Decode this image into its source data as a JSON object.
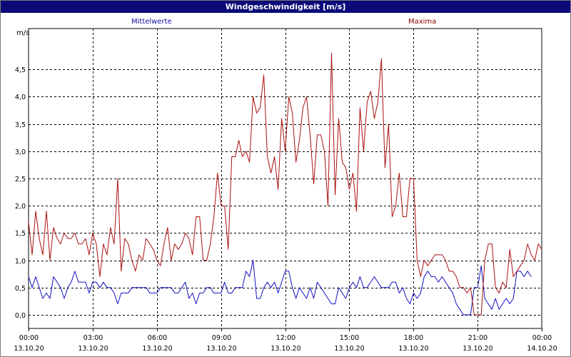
{
  "window": {
    "title": "Windgeschwindigkeit [m/s]"
  },
  "chart_data": {
    "type": "line",
    "title": "Windgeschwindigkeit [m/s]",
    "ylabel": "m/s",
    "ylim": [
      -0.25,
      5.25
    ],
    "xlim": [
      0,
      24
    ],
    "grid": true,
    "legend_placement": "top",
    "y_ticks": [
      "0,0",
      "0,5",
      "1,0",
      "1,5",
      "2,0",
      "2,5",
      "3,0",
      "3,5",
      "4,0",
      "4,5"
    ],
    "x_ticks": [
      {
        "time": "00:00",
        "date": "13.10.20"
      },
      {
        "time": "03:00",
        "date": "13.10.20"
      },
      {
        "time": "06:00",
        "date": "13.10.20"
      },
      {
        "time": "09:00",
        "date": "13.10.20"
      },
      {
        "time": "12:00",
        "date": "13.10.20"
      },
      {
        "time": "15:00",
        "date": "13.10.20"
      },
      {
        "time": "18:00",
        "date": "13.10.20"
      },
      {
        "time": "21:00",
        "date": "13.10.20"
      },
      {
        "time": "00:00",
        "date": "14.10.20"
      }
    ],
    "x_hours_step": 0.1667,
    "series": [
      {
        "name": "Mittelwerte",
        "color": "#1010c0",
        "values": [
          0.7,
          0.5,
          0.7,
          0.5,
          0.3,
          0.4,
          0.3,
          0.7,
          0.6,
          0.5,
          0.3,
          0.5,
          0.6,
          0.8,
          0.6,
          0.6,
          0.6,
          0.4,
          0.6,
          0.6,
          0.5,
          0.6,
          0.5,
          0.5,
          0.4,
          0.2,
          0.4,
          0.4,
          0.4,
          0.5,
          0.5,
          0.5,
          0.5,
          0.5,
          0.4,
          0.4,
          0.4,
          0.5,
          0.5,
          0.5,
          0.5,
          0.4,
          0.4,
          0.5,
          0.6,
          0.3,
          0.4,
          0.2,
          0.4,
          0.4,
          0.5,
          0.5,
          0.4,
          0.4,
          0.4,
          0.6,
          0.4,
          0.4,
          0.5,
          0.5,
          0.5,
          0.8,
          0.7,
          1.0,
          0.3,
          0.3,
          0.5,
          0.6,
          0.5,
          0.6,
          0.4,
          0.6,
          0.8,
          0.8,
          0.5,
          0.3,
          0.5,
          0.4,
          0.3,
          0.5,
          0.3,
          0.6,
          0.5,
          0.4,
          0.3,
          0.2,
          0.2,
          0.5,
          0.4,
          0.3,
          0.5,
          0.6,
          0.5,
          0.7,
          0.5,
          0.5,
          0.6,
          0.7,
          0.6,
          0.5,
          0.5,
          0.5,
          0.6,
          0.6,
          0.4,
          0.5,
          0.3,
          0.2,
          0.4,
          0.3,
          0.4,
          0.7,
          0.8,
          0.7,
          0.7,
          0.6,
          0.7,
          0.6,
          0.5,
          0.4,
          0.2,
          0.1,
          0.0,
          0.0,
          0.0,
          0.5,
          0.5,
          0.9,
          0.3,
          0.2,
          0.1,
          0.3,
          0.1,
          0.2,
          0.3,
          0.2,
          0.3,
          0.8,
          0.8,
          0.7,
          0.8,
          0.7
        ]
      },
      {
        "name": "Maxima",
        "color": "#aa1010",
        "values": [
          1.7,
          1.1,
          1.9,
          1.4,
          1.1,
          1.9,
          1.0,
          1.6,
          1.4,
          1.3,
          1.5,
          1.4,
          1.4,
          1.5,
          1.3,
          1.3,
          1.4,
          1.1,
          1.5,
          1.3,
          0.7,
          1.3,
          1.1,
          1.6,
          1.3,
          2.5,
          0.8,
          1.4,
          1.3,
          1.0,
          0.8,
          1.1,
          1.0,
          1.4,
          1.3,
          1.2,
          1.0,
          0.9,
          1.3,
          1.6,
          1.0,
          1.3,
          1.2,
          1.3,
          1.5,
          1.4,
          1.1,
          1.8,
          1.8,
          1.0,
          1.0,
          1.3,
          1.8,
          2.6,
          2.0,
          2.0,
          1.2,
          2.9,
          2.9,
          3.2,
          2.9,
          3.0,
          2.8,
          4.0,
          3.7,
          3.8,
          4.4,
          2.9,
          2.6,
          2.9,
          2.3,
          3.6,
          3.0,
          4.0,
          3.7,
          2.8,
          3.2,
          3.8,
          4.0,
          3.3,
          2.4,
          3.3,
          3.3,
          3.0,
          2.0,
          4.8,
          2.2,
          3.6,
          2.8,
          2.7,
          2.3,
          2.6,
          1.9,
          3.8,
          3.0,
          3.9,
          4.1,
          3.6,
          3.9,
          4.7,
          2.7,
          3.5,
          1.8,
          2.0,
          2.6,
          1.8,
          1.8,
          2.5,
          2.5,
          1.0,
          0.7,
          1.0,
          0.9,
          1.0,
          1.1,
          1.1,
          1.1,
          1.0,
          0.8,
          0.8,
          0.7,
          0.5,
          0.5,
          0.4,
          0.5,
          0.0,
          0.0,
          0.0,
          1.0,
          1.3,
          1.3,
          0.5,
          0.4,
          0.6,
          0.5,
          1.2,
          0.7,
          0.8,
          0.9,
          1.0,
          1.3,
          1.1,
          1.0,
          1.3,
          1.2
        ]
      }
    ]
  }
}
